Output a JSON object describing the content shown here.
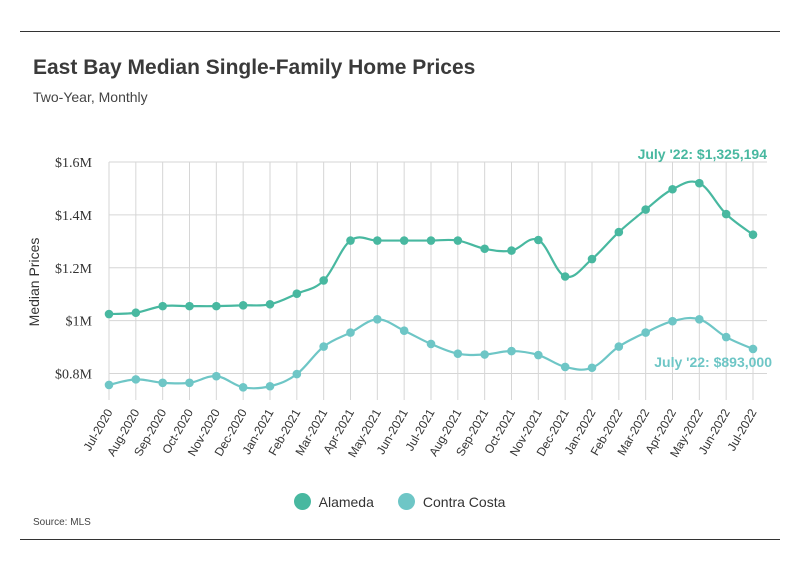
{
  "title": "East Bay Median Single-Family Home Prices",
  "subtitle": "Two-Year, Monthly",
  "source": "Source:  MLS",
  "chart_data": {
    "type": "line",
    "title": "East Bay Median Single-Family Home Prices",
    "subtitle": "Two-Year, Monthly",
    "xlabel": "",
    "ylabel": "Median Prices",
    "ylim": [
      700000,
      1600000
    ],
    "yticks": [
      800000,
      1000000,
      1200000,
      1400000,
      1600000
    ],
    "ytick_labels": [
      "$0.8M",
      "$1M",
      "$1.2M",
      "$1.4M",
      "$1.6M"
    ],
    "grid": "vertical lines at each month; horizontal lines at y ticks",
    "legend_position": "bottom-center",
    "categories": [
      "Jul-2020",
      "Aug-2020",
      "Sep-2020",
      "Oct-2020",
      "Nov-2020",
      "Dec-2020",
      "Jan-2021",
      "Feb-2021",
      "Mar-2021",
      "Apr-2021",
      "May-2021",
      "Jun-2021",
      "Jul-2021",
      "Aug-2021",
      "Sep-2021",
      "Oct-2021",
      "Nov-2021",
      "Dec-2021",
      "Jan-2022",
      "Feb-2022",
      "Mar-2022",
      "Apr-2022",
      "May-2022",
      "Jun-2022",
      "Jul-2022"
    ],
    "series": [
      {
        "name": "Alameda",
        "color": "#48b8a0",
        "values": [
          1025000,
          1030000,
          1055000,
          1055000,
          1055000,
          1058000,
          1062000,
          1102000,
          1152000,
          1303000,
          1303000,
          1303000,
          1303000,
          1303000,
          1272000,
          1265000,
          1305000,
          1167000,
          1233000,
          1335000,
          1420000,
          1497000,
          1520000,
          1403000,
          1325194
        ],
        "annotation": "July '22: $1,325,194"
      },
      {
        "name": "Contra Costa",
        "color": "#6ec6c6",
        "values": [
          757000,
          778000,
          765000,
          765000,
          790000,
          748000,
          752000,
          798000,
          902000,
          955000,
          1005000,
          962000,
          912000,
          875000,
          872000,
          885000,
          870000,
          825000,
          822000,
          902000,
          955000,
          998000,
          1005000,
          938000,
          893000
        ],
        "annotation": "July '22: $893,000"
      }
    ]
  }
}
